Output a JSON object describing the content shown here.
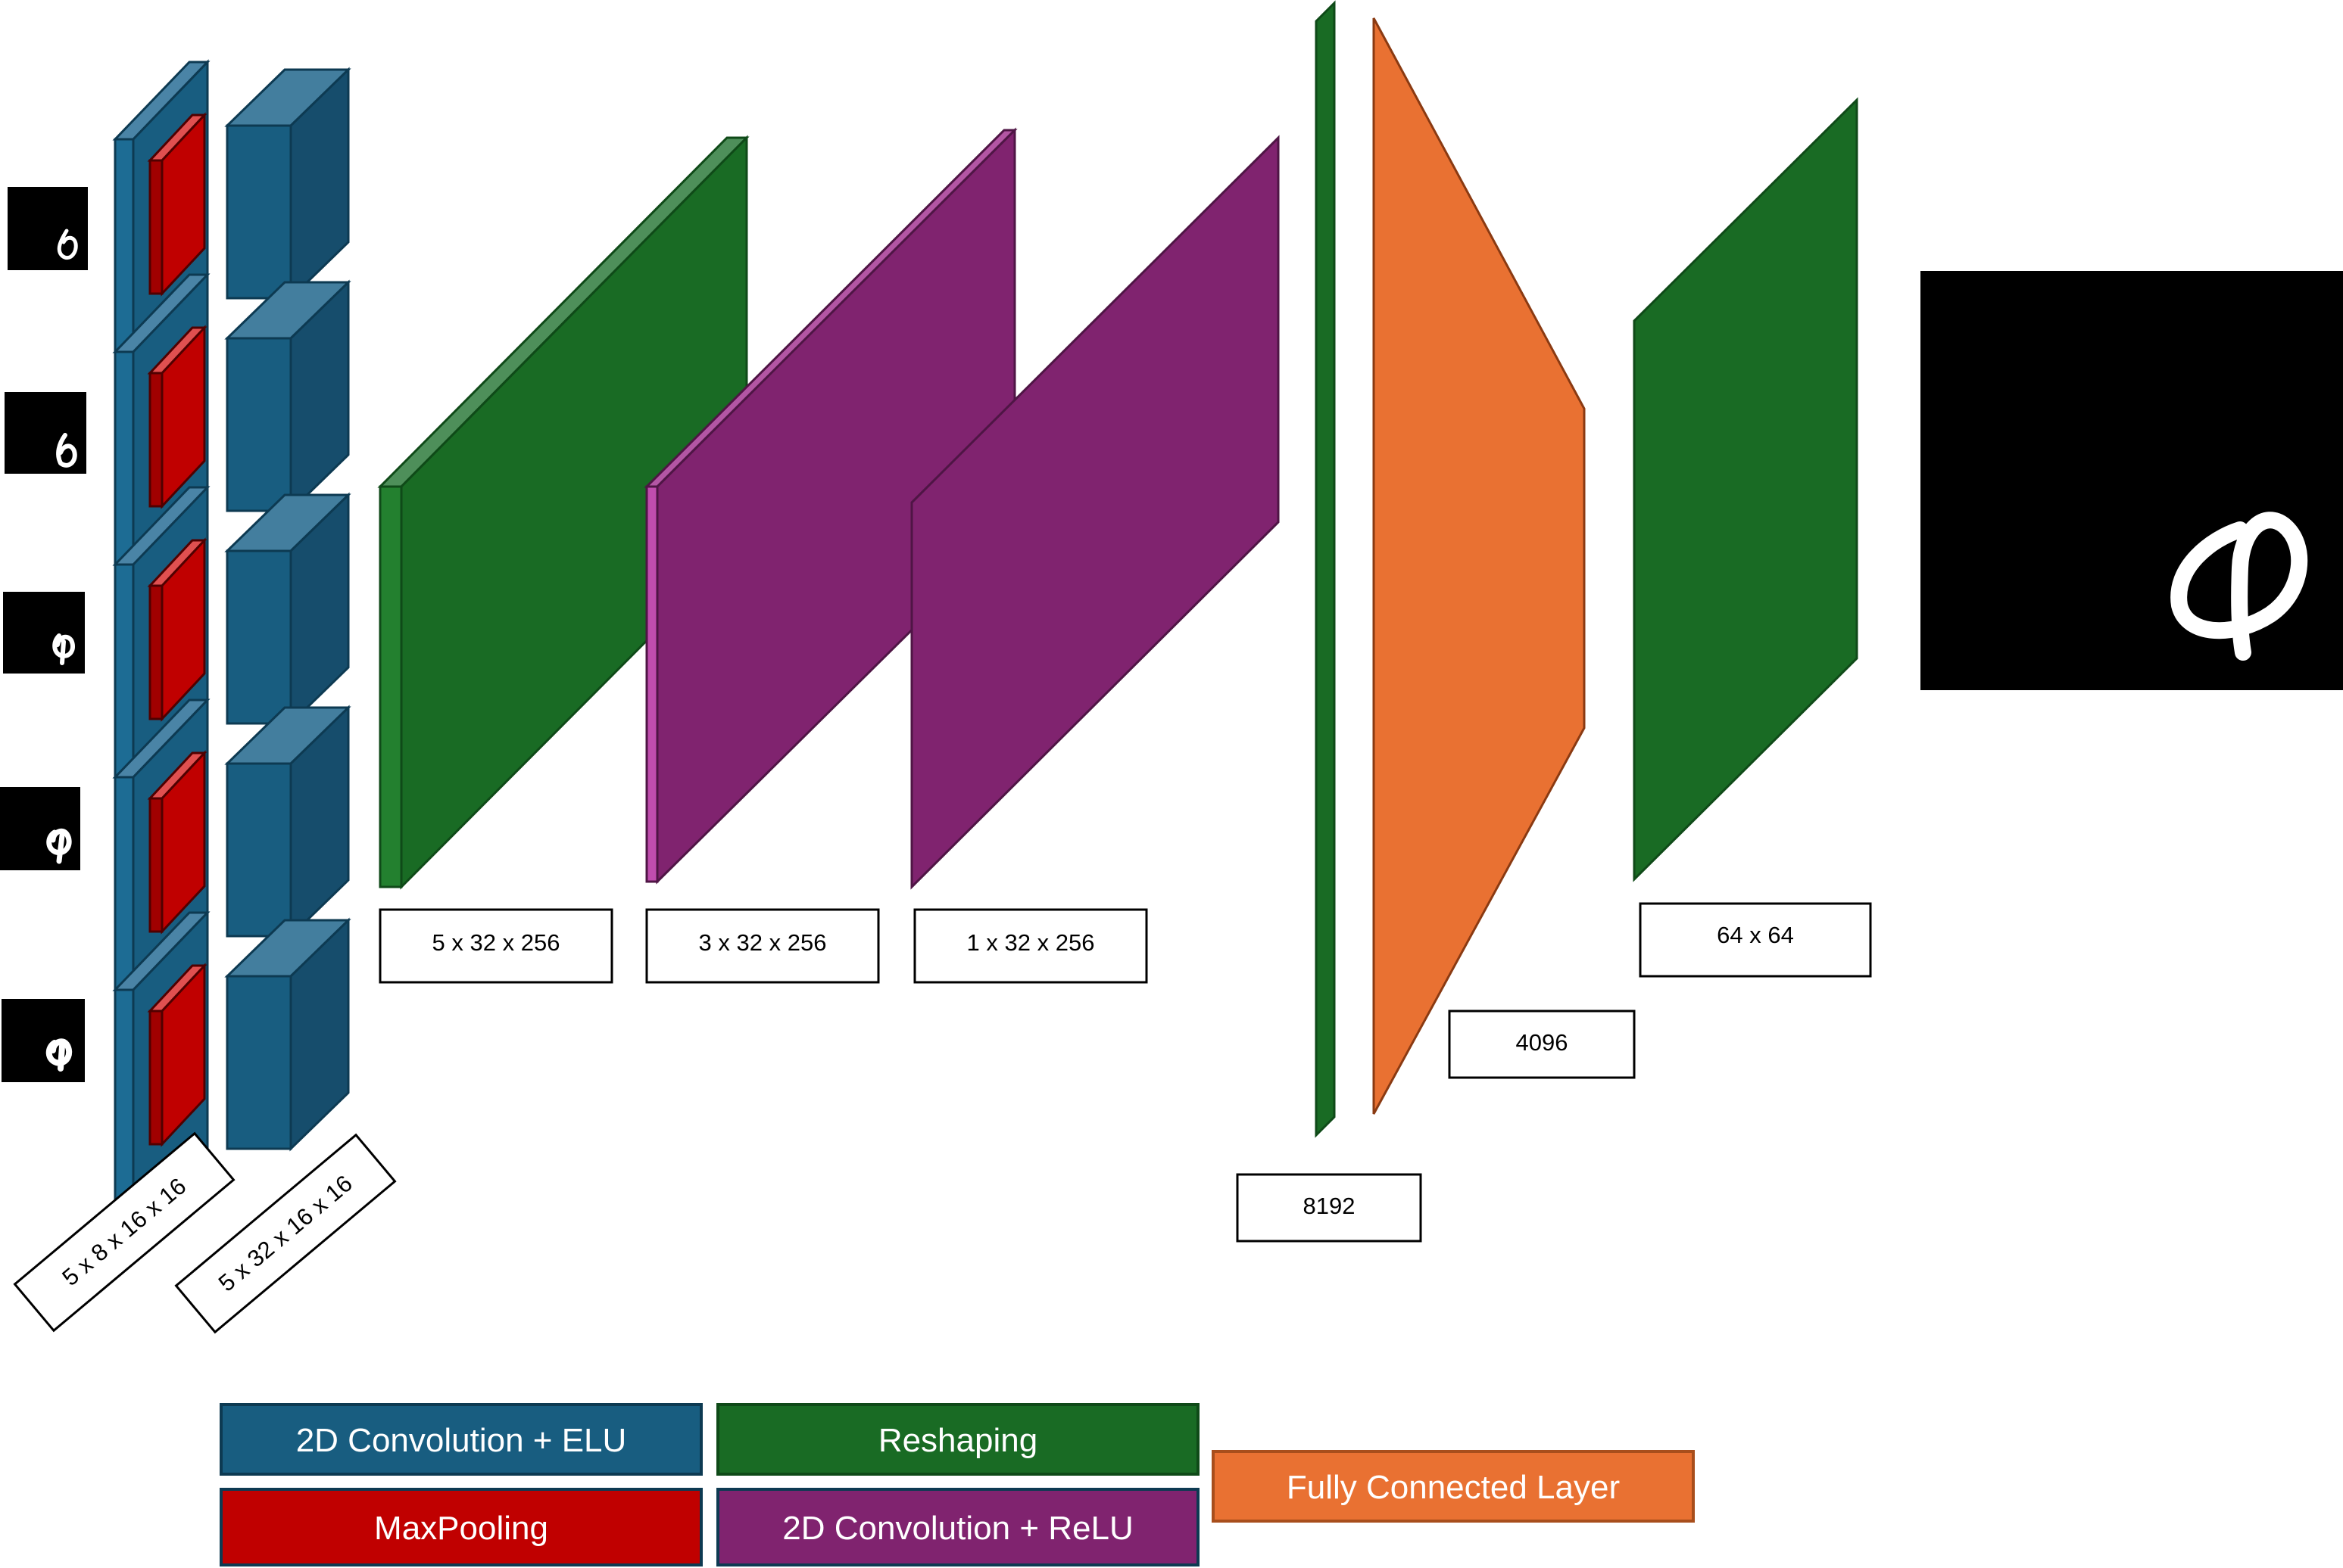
{
  "layers": {
    "conv_elu_stack": {
      "label": "5 x 8 x 16 x 16"
    },
    "conv_block_stack": {
      "label": "5 x 32 x 16 x 16"
    },
    "reshape_1": {
      "label": "5 x 32 x 256"
    },
    "conv_relu_1": {
      "label": "3 x 32 x 256"
    },
    "conv_relu_2": {
      "label": "1 x 32 x 256"
    },
    "flatten": {
      "label": "8192"
    },
    "fully_connected": {
      "label": "4096"
    },
    "reshape_out": {
      "label": "64 x 64"
    }
  },
  "legend": {
    "conv_elu": "2D Convolution + ELU",
    "maxpool": "MaxPooling",
    "reshaping": "Reshaping",
    "conv_relu": "2D Convolution + ReLU",
    "fully_connected": "Fully Connected Layer"
  },
  "colors": {
    "conv_elu": "#185d80",
    "maxpool": "#c00000",
    "reshaping": "#196b24",
    "conv_relu": "#80236f",
    "fully_connected": "#e97132",
    "input_background": "#000000"
  }
}
